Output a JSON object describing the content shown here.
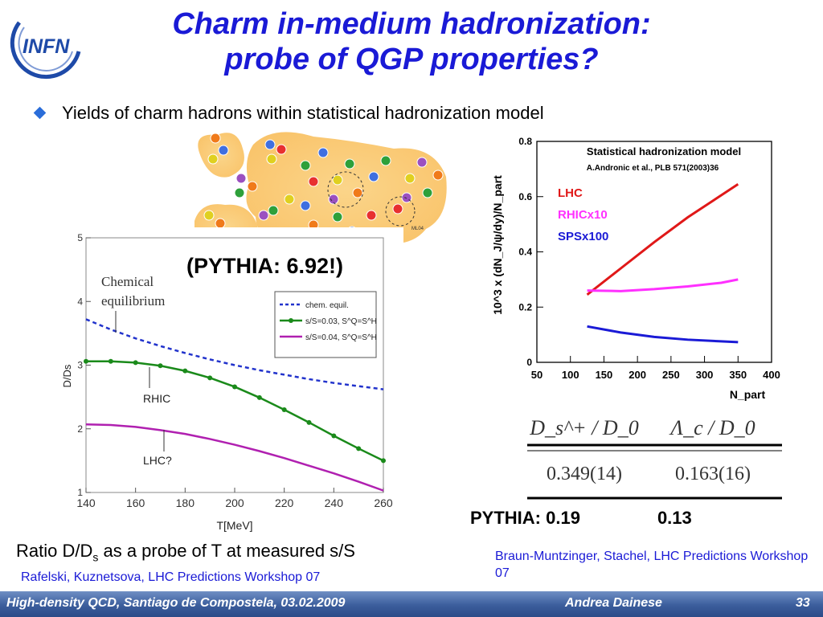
{
  "slide": {
    "logo_text": "INFN",
    "title_line1": "Charm in-medium hadronization:",
    "title_line2": "probe of QGP properties?",
    "bullet": "Yields of charm hadrons within statistical hadronization model",
    "blob_label": "ML04",
    "pythia_big": "(PYTHIA: 6.92!)",
    "pythia_label": "PYTHIA: 0.19",
    "pythia_value2": "0.13",
    "ratio_caption_pre": "Ratio D/D",
    "ratio_caption_sub": "s",
    "ratio_caption_post": " as a probe of T at measured s/S",
    "ref_left": "Rafelski, Kuznetsova, LHC Predictions Workshop 07",
    "ref_right": "Braun-Muntzinger, Stachel, LHC Predictions Workshop 07",
    "footer_left": "High-density QCD, Santiago de Compostela, 03.02.2009",
    "footer_center": "Andrea Dainese",
    "footer_page": "33"
  },
  "table": {
    "headers": [
      "D_s^+ / D_0",
      "Λ_c / D_0"
    ],
    "values": [
      "0.349(14)",
      "0.163(16)"
    ]
  },
  "chart_data": [
    {
      "type": "line",
      "xlabel": "T[MeV]",
      "ylabel": "D/Ds",
      "xlim": [
        140,
        260
      ],
      "ylim": [
        1,
        5
      ],
      "xticks": [
        140,
        160,
        180,
        200,
        220,
        240,
        260
      ],
      "yticks": [
        1,
        2,
        3,
        4,
        5
      ],
      "legend_position": "top-right",
      "annotations": [
        "Chemical",
        "equilibrium",
        "RHIC",
        "LHC?"
      ],
      "series": [
        {
          "name": "chem. equil.",
          "color": "#2233cc",
          "style": "dashed",
          "x": [
            140,
            150,
            160,
            170,
            180,
            190,
            200,
            210,
            220,
            230,
            240,
            250,
            260
          ],
          "y": [
            3.72,
            3.56,
            3.42,
            3.3,
            3.19,
            3.09,
            3.0,
            2.92,
            2.85,
            2.78,
            2.72,
            2.67,
            2.62
          ]
        },
        {
          "name": "s/S=0.03, S^Q=S^H",
          "color": "#1a8a1a",
          "style": "solid-markers",
          "x": [
            140,
            150,
            160,
            170,
            180,
            190,
            200,
            210,
            220,
            230,
            240,
            250,
            260
          ],
          "y": [
            3.06,
            3.06,
            3.04,
            2.99,
            2.91,
            2.8,
            2.66,
            2.49,
            2.3,
            2.1,
            1.89,
            1.69,
            1.5
          ]
        },
        {
          "name": "s/S=0.04,    S^Q=S^H",
          "color": "#b020b0",
          "style": "solid",
          "x": [
            140,
            150,
            160,
            170,
            180,
            190,
            200,
            210,
            220,
            230,
            240,
            250,
            260
          ],
          "y": [
            2.07,
            2.06,
            2.03,
            1.98,
            1.92,
            1.84,
            1.75,
            1.65,
            1.54,
            1.42,
            1.3,
            1.17,
            1.03
          ]
        }
      ]
    },
    {
      "type": "line",
      "title": "Statistical hadronization model",
      "subtitle": "A.Andronic et al., PLB 571(2003)36",
      "xlabel": "N_part",
      "ylabel": "10^3 x (dN_J/ψ/dy)/N_part",
      "xlim": [
        50,
        400
      ],
      "ylim": [
        0,
        0.8
      ],
      "xticks": [
        50,
        100,
        150,
        200,
        250,
        300,
        350,
        400
      ],
      "yticks": [
        0,
        0.2,
        0.4,
        0.6,
        0.8
      ],
      "legend_position": "top-left",
      "series": [
        {
          "name": "LHC",
          "color": "#e01818",
          "x": [
            125,
            175,
            225,
            275,
            325,
            350
          ],
          "y": [
            0.245,
            0.34,
            0.435,
            0.525,
            0.605,
            0.645
          ]
        },
        {
          "name": "RHICx10",
          "color": "#ff30ff",
          "x": [
            125,
            175,
            225,
            275,
            325,
            350
          ],
          "y": [
            0.26,
            0.258,
            0.265,
            0.275,
            0.288,
            0.3
          ]
        },
        {
          "name": "SPSx100",
          "color": "#1a1ad6",
          "x": [
            125,
            175,
            225,
            275,
            325,
            350
          ],
          "y": [
            0.13,
            0.108,
            0.092,
            0.082,
            0.076,
            0.073
          ]
        }
      ]
    }
  ]
}
